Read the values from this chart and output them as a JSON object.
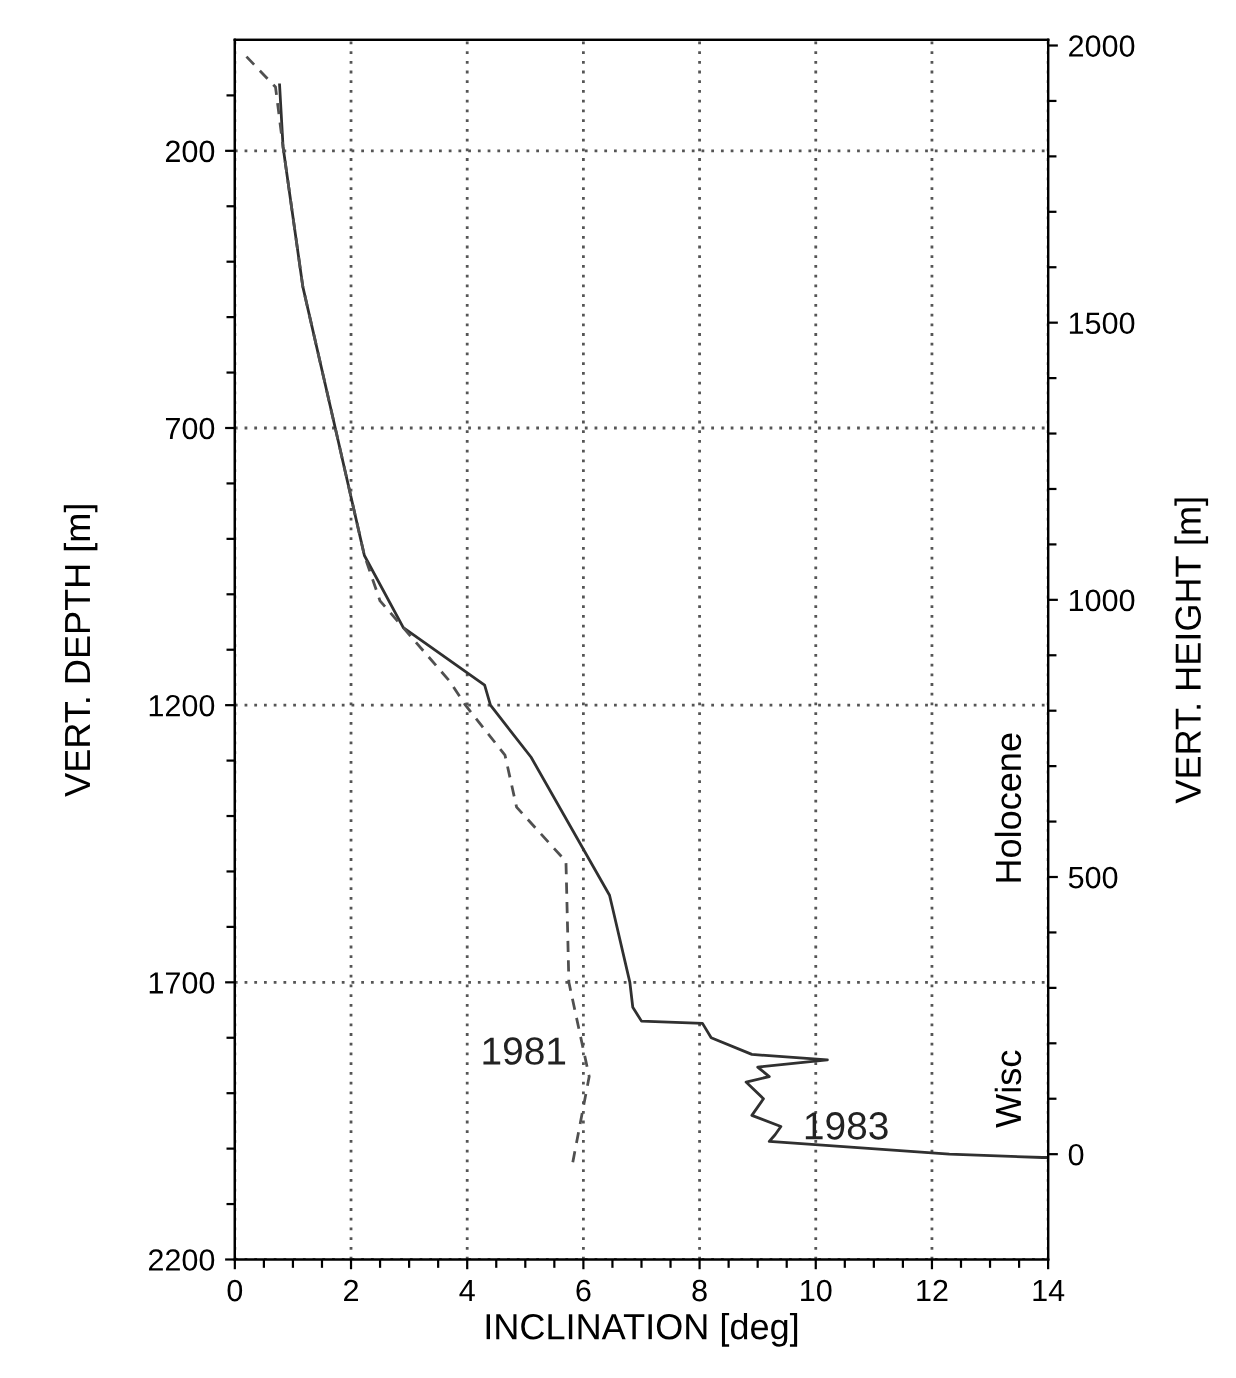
{
  "chart_data": {
    "type": "line",
    "xlabel": "INCLINATION [deg]",
    "ylabel": "VERT. DEPTH [m]",
    "y2label": "VERT. HEIGHT [m]",
    "xlim": [
      0,
      14
    ],
    "xticks": [
      0,
      {
        "value": 0.5,
        "label": null
      },
      {
        "value": 1,
        "label": null
      },
      {
        "value": 1.5,
        "label": null
      },
      2,
      {
        "value": 2.5,
        "label": null
      },
      {
        "value": 3,
        "label": null
      },
      {
        "value": 3.5,
        "label": null
      },
      4,
      {
        "value": 4.5,
        "label": null
      },
      {
        "value": 5,
        "label": null
      },
      {
        "value": 5.5,
        "label": null
      },
      6,
      {
        "value": 6.5,
        "label": null
      },
      {
        "value": 7,
        "label": null
      },
      {
        "value": 7.5,
        "label": null
      },
      8,
      {
        "value": 8.5,
        "label": null
      },
      {
        "value": 9,
        "label": null
      },
      {
        "value": 9.5,
        "label": null
      },
      10,
      {
        "value": 10.5,
        "label": null
      },
      {
        "value": 11,
        "label": null
      },
      {
        "value": 11.5,
        "label": null
      },
      12,
      {
        "value": 12.5,
        "label": null
      },
      {
        "value": 13,
        "label": null
      },
      {
        "value": 13.5,
        "label": null
      },
      14
    ],
    "ylim": [
      2200,
      0
    ],
    "yticks": [
      {
        "value": 100,
        "label": null
      },
      200,
      {
        "value": 300,
        "label": null
      },
      {
        "value": 400,
        "label": null
      },
      {
        "value": 500,
        "label": null
      },
      {
        "value": 600,
        "label": null
      },
      700,
      {
        "value": 800,
        "label": null
      },
      {
        "value": 900,
        "label": null
      },
      {
        "value": 1000,
        "label": null
      },
      {
        "value": 1100,
        "label": null
      },
      1200,
      {
        "value": 1300,
        "label": null
      },
      {
        "value": 1400,
        "label": null
      },
      {
        "value": 1500,
        "label": null
      },
      {
        "value": 1600,
        "label": null
      },
      1700,
      {
        "value": 1800,
        "label": null
      },
      {
        "value": 1900,
        "label": null
      },
      {
        "value": 2000,
        "label": null
      },
      {
        "value": 2100,
        "label": null
      },
      2200
    ],
    "y2lim": [
      -190,
      2010
    ],
    "y2ticks": [
      0,
      {
        "value": 100,
        "label": null
      },
      {
        "value": 200,
        "label": null
      },
      {
        "value": 300,
        "label": null
      },
      {
        "value": 400,
        "label": null
      },
      500,
      {
        "value": 600,
        "label": null
      },
      {
        "value": 700,
        "label": null
      },
      {
        "value": 800,
        "label": null
      },
      {
        "value": 900,
        "label": null
      },
      1000,
      {
        "value": 1100,
        "label": null
      },
      {
        "value": 1200,
        "label": null
      },
      {
        "value": 1300,
        "label": null
      },
      {
        "value": 1400,
        "label": null
      },
      1500,
      {
        "value": 1600,
        "label": null
      },
      {
        "value": 1700,
        "label": null
      },
      {
        "value": 1800,
        "label": null
      },
      {
        "value": 1900,
        "label": null
      },
      2000
    ],
    "grid": true,
    "marker": "none",
    "series": [
      {
        "name": "1983",
        "color": "#303030",
        "line_style": "solid",
        "x": [
          0.77,
          0.83,
          1.17,
          1.7,
          2.23,
          2.9,
          4.3,
          4.4,
          5.1,
          6.45,
          6.5,
          6.8,
          6.85,
          7.0,
          8.05,
          8.2,
          8.9,
          10.2,
          9.0,
          9.2,
          8.8,
          9.1,
          8.9,
          9.4,
          9.3,
          9.2,
          12.3,
          13.9,
          14.0
        ],
        "values": [
          81,
          193,
          445,
          687,
          930,
          1060,
          1164,
          1200,
          1294,
          1543,
          1565,
          1700,
          1745,
          1770,
          1774,
          1800,
          1830,
          1840,
          1853,
          1870,
          1880,
          1910,
          1940,
          1960,
          1975,
          1987,
          2010,
          2016,
          2016
        ]
      },
      {
        "name": "1981",
        "color": "#505050",
        "line_style": "dashed",
        "x": [
          0.2,
          0.7,
          0.83,
          1.17,
          1.7,
          2.23,
          2.5,
          3.7,
          3.97,
          4.65,
          4.85,
          5.7,
          5.75,
          6.1,
          5.8
        ],
        "values": [
          30,
          85,
          193,
          445,
          687,
          930,
          1012,
          1157,
          1200,
          1290,
          1384,
          1482,
          1700,
          1870,
          2034
        ]
      }
    ],
    "annotations": [
      "Holocene",
      "Wisc"
    ]
  }
}
